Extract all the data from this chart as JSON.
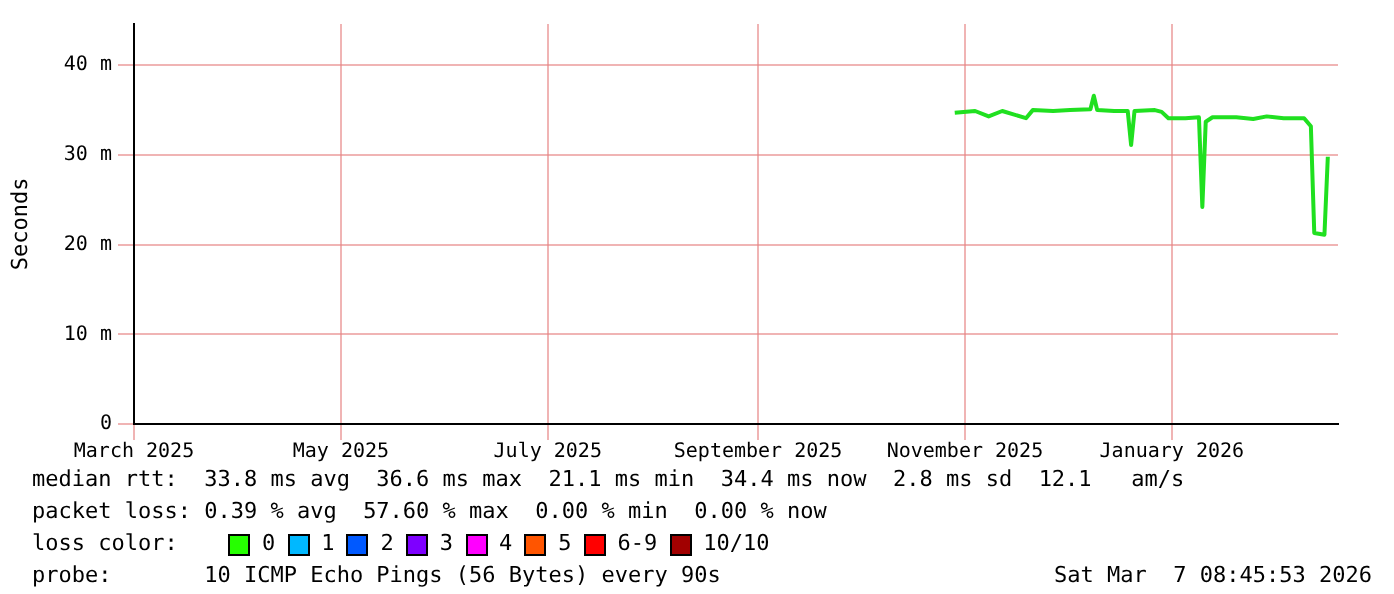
{
  "chart_data": {
    "type": "line",
    "ylabel": "Seconds",
    "x": [
      "2025-10-29",
      "2025-11-04",
      "2025-11-08",
      "2025-11-12",
      "2025-11-19",
      "2025-11-21",
      "2025-11-27",
      "2025-12-02",
      "2025-12-08",
      "2025-12-09",
      "2025-12-10",
      "2025-12-15",
      "2025-12-19",
      "2025-12-20",
      "2025-12-21",
      "2025-12-27",
      "2025-12-29",
      "2025-12-31",
      "2026-01-05",
      "2026-01-09",
      "2026-01-10",
      "2026-01-11",
      "2026-01-13",
      "2026-01-20",
      "2026-01-25",
      "2026-01-29",
      "2026-02-03",
      "2026-02-09",
      "2026-02-11",
      "2026-02-12",
      "2026-02-15",
      "2026-02-16"
    ],
    "series": [
      {
        "color": "#20e020",
        "values": [
          34.7,
          34.9,
          34.3,
          34.9,
          34.1,
          35.0,
          34.9,
          35.0,
          35.1,
          36.6,
          35.0,
          34.9,
          34.9,
          31.1,
          34.9,
          35.0,
          34.8,
          34.1,
          34.1,
          34.2,
          24.2,
          33.7,
          34.2,
          34.2,
          34.0,
          34.3,
          34.1,
          34.1,
          33.2,
          21.3,
          21.1,
          29.8
        ]
      }
    ],
    "xlim": [
      "2025-03-01",
      "2026-02-19"
    ],
    "xticks": [
      {
        "value": "2025-03-01",
        "label": "March 2025"
      },
      {
        "value": "2025-05-01",
        "label": "May 2025"
      },
      {
        "value": "2025-07-01",
        "label": "July 2025"
      },
      {
        "value": "2025-09-01",
        "label": "September 2025"
      },
      {
        "value": "2025-11-01",
        "label": "November 2025"
      },
      {
        "value": "2026-01-01",
        "label": "January 2026"
      }
    ],
    "ylim": [
      0,
      44.6
    ],
    "yticks": [
      0,
      {
        "value": 10,
        "label": "10 m"
      },
      {
        "value": 20,
        "label": "20 m"
      },
      {
        "value": 30,
        "label": "30 m"
      },
      {
        "value": 40,
        "label": "40 m"
      }
    ],
    "grid": true,
    "legend": false,
    "marker": "none",
    "line_style": "solid",
    "annotations": [
      "median rtt:  33.8 ms avg  36.6 ms max  21.1 ms min  34.4 ms now  2.8 ms sd  12.1   am/s",
      "packet loss: 0.39 % avg  57.60 % max  0.00 % min  0.00 % now",
      "loss color:",
      "0",
      "1",
      "2",
      "3",
      "4",
      "5",
      "6-9",
      "10/10",
      "probe:       10 ICMP Echo Pings (56 Bytes) every 90s",
      "Sat Mar  7 08:45:53 2026"
    ]
  }
}
